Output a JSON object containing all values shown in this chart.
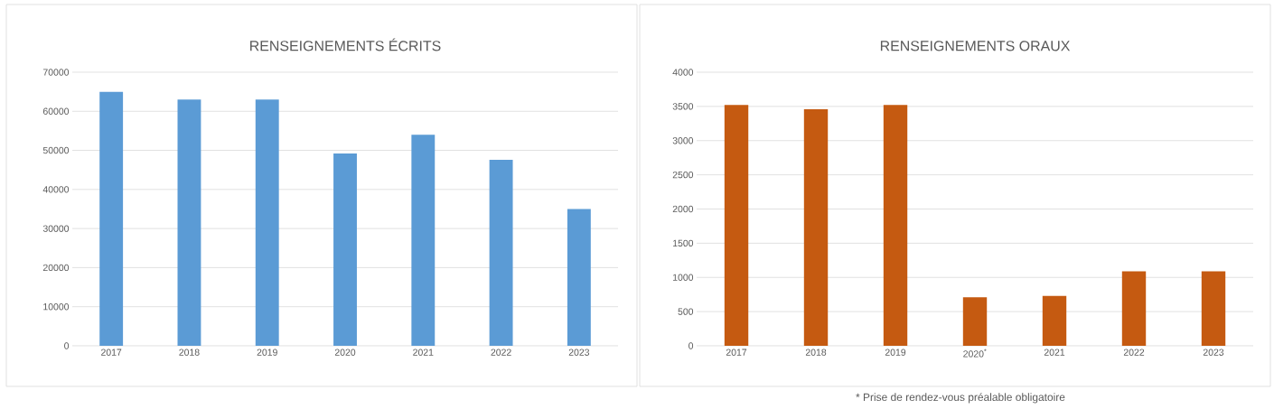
{
  "chart_data": [
    {
      "type": "bar",
      "title": "RENSEIGNEMENTS ÉCRITS",
      "categories": [
        "2017",
        "2018",
        "2019",
        "2020",
        "2021",
        "2022",
        "2023"
      ],
      "values": [
        65000,
        63000,
        63000,
        49200,
        54000,
        47600,
        35000
      ],
      "color": "#5b9bd5",
      "ylim": [
        0,
        70000
      ],
      "yticks": [
        0,
        10000,
        20000,
        30000,
        40000,
        50000,
        60000,
        70000
      ],
      "grid": "y"
    },
    {
      "type": "bar",
      "title": "RENSEIGNEMENTS ORAUX",
      "categories": [
        "2017",
        "2018",
        "2019",
        "2020$^{*}$",
        "2021",
        "2022",
        "2023"
      ],
      "values": [
        3520,
        3460,
        3520,
        710,
        730,
        1090,
        1090
      ],
      "color": "#c55a11",
      "ylim": [
        0,
        4000
      ],
      "yticks": [
        0,
        500,
        1000,
        1500,
        2000,
        2500,
        3000,
        3500,
        4000
      ],
      "grid": "y",
      "annotations": [
        "* Prise de rendez-vous préalable obligatoire"
      ]
    }
  ]
}
